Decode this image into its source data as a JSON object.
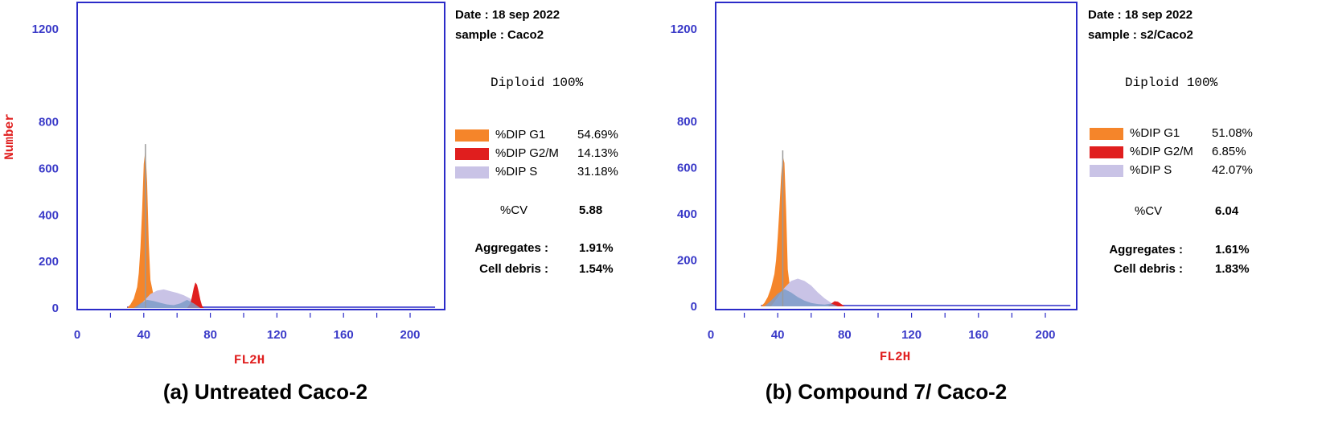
{
  "chart_data": [
    {
      "type": "area",
      "caption": "(a) Untreated Caco-2",
      "xlabel": "FL2H",
      "ylabel": "Number",
      "xlim": [
        0,
        220
      ],
      "ylim": [
        0,
        1300
      ],
      "x_ticks": [
        0,
        40,
        80,
        120,
        160,
        200
      ],
      "y_ticks": [
        0,
        200,
        400,
        600,
        800,
        1200
      ],
      "grid": false,
      "info": {
        "date": "Date : 18 sep 2022",
        "sample": "sample : Caco2",
        "diploid": "Diploid 100%",
        "cv_label": "%CV",
        "cv_value": "5.88",
        "aggregates_label": "Aggregates :",
        "aggregates_value": "1.91%",
        "debris_label": "Cell debris  :",
        "debris_value": "1.54%"
      },
      "legend": [
        {
          "name": "%DIP G1",
          "value": "54.69%",
          "color": "#f5852a"
        },
        {
          "name": "%DIP G2/M",
          "value": "14.13%",
          "color": "#e01e1e"
        },
        {
          "name": "%DIP S",
          "value": "31.18%",
          "color": "#c9c3e6"
        }
      ],
      "series": [
        {
          "name": "%DIP G1",
          "color": "#f5852a",
          "x": [
            30,
            32,
            34,
            36,
            37,
            38,
            39,
            40,
            41,
            42,
            43,
            44,
            46,
            48,
            50
          ],
          "y": [
            0,
            15,
            40,
            90,
            150,
            260,
            420,
            620,
            680,
            540,
            280,
            120,
            50,
            15,
            0
          ]
        },
        {
          "name": "%DIP S",
          "color": "#c9c3e6",
          "x": [
            36,
            40,
            44,
            48,
            52,
            56,
            60,
            64,
            68,
            70,
            72
          ],
          "y": [
            0,
            30,
            60,
            75,
            80,
            72,
            65,
            55,
            40,
            20,
            0
          ]
        },
        {
          "name": "%DIP G2/M",
          "color": "#e01e1e",
          "x": [
            66,
            68,
            69,
            70,
            71,
            72,
            73,
            74,
            75,
            76
          ],
          "y": [
            0,
            20,
            50,
            85,
            110,
            100,
            70,
            35,
            10,
            0
          ]
        },
        {
          "name": "",
          "color": "#7e9cc8",
          "x": [
            34,
            38,
            42,
            46,
            50,
            54,
            58,
            62,
            66,
            70,
            74
          ],
          "y": [
            0,
            20,
            35,
            30,
            22,
            15,
            12,
            20,
            35,
            20,
            0
          ]
        }
      ]
    },
    {
      "type": "area",
      "caption": "(b) Compound 7/ Caco-2",
      "xlabel": "FL2H",
      "ylabel": "Number",
      "xlim": [
        0,
        220
      ],
      "ylim": [
        0,
        1300
      ],
      "x_ticks": [
        0,
        40,
        80,
        120,
        160,
        200
      ],
      "y_ticks": [
        0,
        200,
        400,
        600,
        800,
        1200
      ],
      "grid": false,
      "info": {
        "date": "Date : 18 sep 2022",
        "sample": "sample : s2/Caco2",
        "diploid": "Diploid 100%",
        "cv_label": "%CV",
        "cv_value": "6.04",
        "aggregates_label": "Aggregates :",
        "aggregates_value": "1.61%",
        "debris_label": "Cell debris  :",
        "debris_value": "1.83%"
      },
      "legend": [
        {
          "name": "%DIP G1",
          "value": "51.08%",
          "color": "#f5852a"
        },
        {
          "name": "%DIP G2/M",
          "value": "6.85%",
          "color": "#e01e1e"
        },
        {
          "name": "%DIP S",
          "value": "42.07%",
          "color": "#c9c3e6"
        }
      ],
      "series": [
        {
          "name": "%DIP G1",
          "color": "#f5852a",
          "x": [
            30,
            32,
            34,
            36,
            38,
            39,
            40,
            41,
            42,
            43,
            44,
            45,
            46,
            48,
            50
          ],
          "y": [
            0,
            15,
            40,
            80,
            140,
            200,
            300,
            420,
            560,
            650,
            620,
            420,
            160,
            40,
            0
          ]
        },
        {
          "name": "%DIP S",
          "color": "#c9c3e6",
          "x": [
            36,
            40,
            44,
            48,
            52,
            56,
            60,
            64,
            68,
            72,
            76
          ],
          "y": [
            0,
            40,
            80,
            110,
            120,
            110,
            90,
            60,
            35,
            15,
            0
          ]
        },
        {
          "name": "%DIP G2/M",
          "color": "#e01e1e",
          "x": [
            70,
            72,
            74,
            76,
            78,
            80
          ],
          "y": [
            0,
            12,
            22,
            20,
            10,
            0
          ]
        },
        {
          "name": "",
          "color": "#7e9cc8",
          "x": [
            32,
            36,
            40,
            44,
            48,
            52,
            56,
            60,
            64,
            68,
            72,
            76
          ],
          "y": [
            0,
            25,
            55,
            75,
            60,
            40,
            25,
            15,
            10,
            8,
            12,
            0
          ]
        }
      ]
    }
  ]
}
